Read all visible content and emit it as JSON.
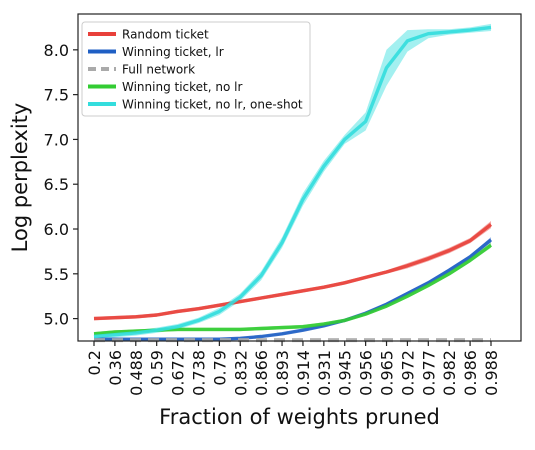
{
  "chart_data": {
    "type": "line",
    "xlabel": "Fraction of weights pruned",
    "ylabel": "Log perplexity",
    "categories": [
      "0.2",
      "0.36",
      "0.488",
      "0.59",
      "0.672",
      "0.738",
      "0.79",
      "0.832",
      "0.866",
      "0.893",
      "0.914",
      "0.931",
      "0.945",
      "0.956",
      "0.965",
      "0.972",
      "0.977",
      "0.982",
      "0.986",
      "0.988"
    ],
    "ylim": [
      4.75,
      8.4
    ],
    "yticks": [
      5.0,
      5.5,
      6.0,
      6.5,
      7.0,
      7.5,
      8.0
    ],
    "ytick_labels": [
      "5.0",
      "5.5",
      "6.0",
      "6.5",
      "7.0",
      "7.5",
      "8.0"
    ],
    "grid": false,
    "legend_position": "top-left",
    "series": [
      {
        "name": "Random ticket",
        "color": "#e8403a",
        "style": "solid",
        "values": [
          5.0,
          5.01,
          5.02,
          5.04,
          5.08,
          5.11,
          5.15,
          5.19,
          5.23,
          5.27,
          5.31,
          5.35,
          5.4,
          5.46,
          5.52,
          5.59,
          5.67,
          5.76,
          5.87,
          6.05
        ],
        "band": [
          0.02,
          0.02,
          0.02,
          0.02,
          0.02,
          0.02,
          0.02,
          0.02,
          0.02,
          0.02,
          0.02,
          0.02,
          0.02,
          0.02,
          0.02,
          0.03,
          0.03,
          0.03,
          0.03,
          0.04
        ]
      },
      {
        "name": "Winning ticket, lr",
        "color": "#1f5fc4",
        "style": "solid",
        "values": [
          4.77,
          4.77,
          4.77,
          4.77,
          4.77,
          4.77,
          4.77,
          4.78,
          4.8,
          4.83,
          4.87,
          4.92,
          4.98,
          5.06,
          5.16,
          5.28,
          5.4,
          5.54,
          5.69,
          5.88
        ],
        "band": [
          0.01,
          0.01,
          0.01,
          0.01,
          0.01,
          0.01,
          0.01,
          0.01,
          0.01,
          0.01,
          0.01,
          0.01,
          0.01,
          0.01,
          0.02,
          0.02,
          0.02,
          0.02,
          0.02,
          0.03
        ]
      },
      {
        "name": "Full network",
        "color": "#aaaaaa",
        "style": "dashed",
        "values": [
          4.76,
          4.76,
          4.76,
          4.76,
          4.76,
          4.76,
          4.76,
          4.76,
          4.76,
          4.76,
          4.76,
          4.76,
          4.76,
          4.76,
          4.76,
          4.76,
          4.76,
          4.76,
          4.76,
          4.76
        ]
      },
      {
        "name": "Winning ticket, no lr",
        "color": "#33cc33",
        "style": "solid",
        "values": [
          4.83,
          4.85,
          4.86,
          4.87,
          4.88,
          4.88,
          4.88,
          4.88,
          4.89,
          4.9,
          4.91,
          4.94,
          4.98,
          5.05,
          5.14,
          5.25,
          5.37,
          5.5,
          5.65,
          5.82
        ],
        "band": [
          0.02,
          0.02,
          0.02,
          0.02,
          0.02,
          0.02,
          0.02,
          0.02,
          0.02,
          0.02,
          0.02,
          0.02,
          0.02,
          0.02,
          0.02,
          0.02,
          0.02,
          0.02,
          0.02,
          0.03
        ]
      },
      {
        "name": "Winning ticket, no lr, one-shot",
        "color": "#33dddd",
        "style": "solid",
        "values": [
          4.8,
          4.82,
          4.84,
          4.87,
          4.91,
          4.98,
          5.08,
          5.24,
          5.48,
          5.85,
          6.33,
          6.7,
          7.0,
          7.2,
          7.8,
          8.1,
          8.18,
          8.2,
          8.22,
          8.25
        ],
        "band": [
          0.03,
          0.03,
          0.03,
          0.03,
          0.03,
          0.03,
          0.04,
          0.04,
          0.05,
          0.06,
          0.07,
          0.06,
          0.05,
          0.1,
          0.2,
          0.12,
          0.05,
          0.03,
          0.03,
          0.04
        ]
      }
    ]
  }
}
